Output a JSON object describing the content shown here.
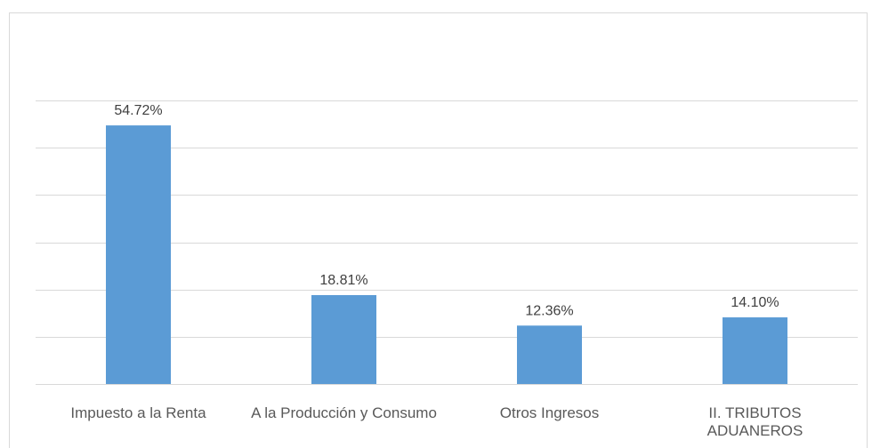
{
  "chart_data": {
    "type": "bar",
    "categories": [
      "Impuesto a la Renta",
      "A la Producción y Consumo",
      "Otros Ingresos",
      "II. TRIBUTOS ADUANEROS"
    ],
    "values": [
      54.72,
      18.81,
      12.36,
      14.1
    ],
    "value_labels": [
      "54.72%",
      "18.81%",
      "12.36%",
      "14.10%"
    ],
    "color": "#5b9bd5",
    "ylim": [
      0,
      60
    ],
    "yticks": [
      0,
      10,
      20,
      30,
      40,
      50,
      60
    ],
    "grid": true
  }
}
